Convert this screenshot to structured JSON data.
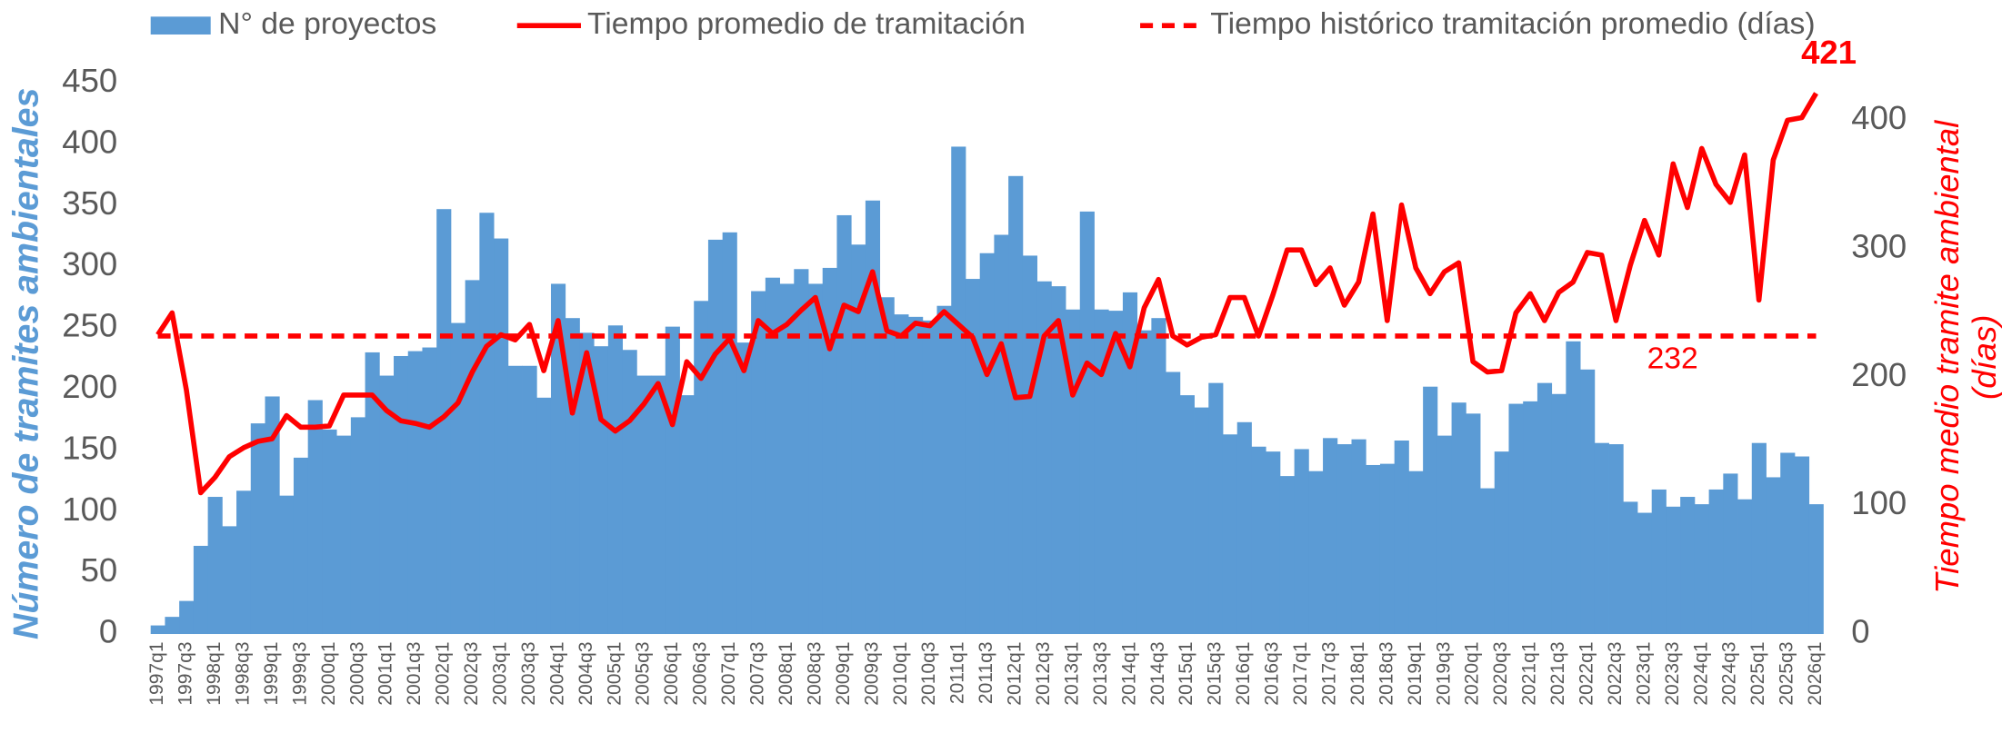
{
  "chart_data": {
    "type": "bar-line",
    "y_label": "Número de tramites ambientales",
    "y2_label": [
      "Tiempo medio tramite ambiental",
      "(días)"
    ],
    "categories": [
      "1997q1",
      null,
      "1997q3",
      null,
      "1998q1",
      null,
      "1998q3",
      null,
      "1999q1",
      null,
      "1999q3",
      null,
      "2000q1",
      null,
      "2000q3",
      null,
      "2001q1",
      null,
      "2001q3",
      null,
      "2002q1",
      null,
      "2002q3",
      null,
      "2003q1",
      null,
      "2003q3",
      null,
      "2004q1",
      null,
      "2004q3",
      null,
      "2005q1",
      null,
      "2005q3",
      null,
      "2006q1",
      null,
      "2006q3",
      null,
      "2007q1",
      null,
      "2007q3",
      null,
      "2008q1",
      null,
      "2008q3",
      null,
      "2009q1",
      null,
      "2009q3",
      null,
      "2010q1",
      null,
      "2010q3",
      null,
      "2011q1",
      null,
      "2011q3",
      null,
      "2012q1",
      null,
      "2012q3",
      null,
      "2013q1",
      null,
      "2013q3",
      null,
      "2014q1",
      null,
      "2014q3",
      null,
      "2015q1",
      null,
      "2015q3",
      null,
      "2016q1",
      null,
      "2016q3",
      null,
      "2017q1",
      null,
      "2017q3",
      null,
      "2018q1",
      null,
      "2018q3",
      null,
      "2019q1",
      null,
      "2019q3",
      null,
      "2020q1",
      null,
      "2020q3",
      null,
      "2021q1",
      null,
      "2021q3",
      null,
      "2022q1",
      null,
      "2022q3",
      null,
      "2023q1",
      null,
      "2023q3",
      null,
      "2024q1",
      null,
      "2024q3",
      null,
      "2025q1",
      null,
      "2025q3",
      null,
      "2026q1"
    ],
    "series": [
      {
        "name": "N° de proyectos",
        "kind": "bar",
        "color": "#5b9bd5",
        "values": [
          7,
          14,
          27,
          72,
          112,
          88,
          117,
          172,
          194,
          113,
          144,
          191,
          167,
          162,
          177,
          230,
          211,
          227,
          231,
          234,
          347,
          254,
          289,
          344,
          323,
          219,
          219,
          193,
          286,
          258,
          246,
          235,
          252,
          232,
          211,
          211,
          251,
          195,
          272,
          322,
          328,
          238,
          280,
          291,
          286,
          298,
          286,
          299,
          342,
          318,
          354,
          275,
          261,
          259,
          256,
          268,
          398,
          290,
          311,
          326,
          374,
          309,
          288,
          284,
          265,
          345,
          265,
          264,
          279,
          248,
          258,
          214,
          195,
          185,
          205,
          163,
          173,
          153,
          149,
          129,
          151,
          133,
          160,
          155,
          159,
          138,
          139,
          158,
          133,
          202,
          162,
          189,
          180,
          119,
          149,
          188,
          190,
          205,
          196,
          239,
          216,
          156,
          155,
          108,
          99,
          118,
          104,
          112,
          106,
          118,
          131,
          110,
          156,
          128,
          148,
          145,
          106
        ]
      },
      {
        "name": "Tiempo promedio de tramitación",
        "kind": "line",
        "axis": "y2",
        "color": "#ff0000",
        "values": [
          233,
          250,
          190,
          110,
          122,
          138,
          145,
          150,
          152,
          170,
          161,
          161,
          162,
          186,
          186,
          186,
          174,
          166,
          164,
          161,
          169,
          180,
          204,
          224,
          233,
          229,
          241,
          205,
          244,
          172,
          219,
          167,
          158,
          166,
          179,
          195,
          163,
          212,
          199,
          218,
          230,
          205,
          244,
          234,
          241,
          252,
          262,
          222,
          256,
          251,
          282,
          236,
          232,
          242,
          240,
          251,
          241,
          231,
          202,
          226,
          184,
          185,
          232,
          244,
          186,
          211,
          202,
          234,
          208,
          254,
          276,
          232,
          225,
          231,
          233,
          262,
          262,
          232,
          264,
          299,
          299,
          272,
          285,
          256,
          274,
          327,
          244,
          334,
          285,
          265,
          282,
          289,
          212,
          204,
          205,
          250,
          265,
          244,
          266,
          274,
          297,
          295,
          244,
          287,
          322,
          295,
          366,
          332,
          378,
          350,
          336,
          373,
          260,
          369,
          400,
          402,
          421
        ]
      },
      {
        "name": "Tiempo histórico tramitación promedio (días)",
        "kind": "hline",
        "axis": "y2",
        "color": "#ff0000",
        "dash": true,
        "value": 232
      }
    ],
    "ylim": [
      0,
      450
    ],
    "yticks": [
      0,
      50,
      100,
      150,
      200,
      250,
      300,
      350,
      400,
      450
    ],
    "y2lim": [
      0,
      429
    ],
    "y2ticks": [
      0,
      100,
      200,
      300,
      400
    ],
    "legend": "top"
  }
}
